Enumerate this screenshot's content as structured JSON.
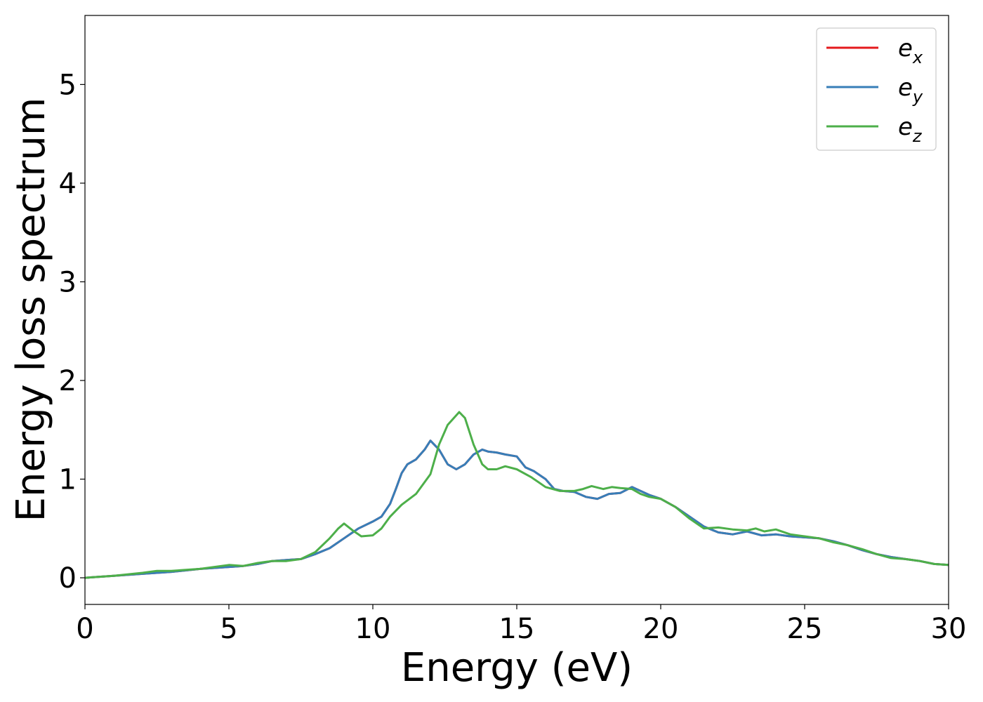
{
  "chart_data": {
    "type": "line",
    "xlabel": "Energy (eV)",
    "ylabel": "Energy loss spectrum",
    "xlim": [
      0,
      30
    ],
    "ylim": [
      -0.27,
      5.7
    ],
    "xticks": [
      "0",
      "5",
      "10",
      "15",
      "20",
      "25",
      "30"
    ],
    "yticks": [
      "0",
      "1",
      "2",
      "3",
      "4",
      "5"
    ],
    "grid": false,
    "legend_position": "top-right",
    "series": [
      {
        "name": "e",
        "subscript": "x",
        "color": "#e41a1c",
        "x": [
          0,
          1,
          2,
          3,
          4,
          4.5,
          5,
          5.5,
          6,
          6.5,
          7,
          7.5,
          8,
          8.5,
          9,
          9.5,
          10,
          10.3,
          10.6,
          10.8,
          11,
          11.2,
          11.5,
          11.8,
          12,
          12.3,
          12.6,
          12.9,
          13.2,
          13.5,
          13.8,
          14,
          14.3,
          14.6,
          15,
          15.3,
          15.6,
          16,
          16.3,
          16.6,
          17,
          17.4,
          17.8,
          18.2,
          18.6,
          19,
          19.3,
          19.6,
          20,
          20.5,
          21,
          21.5,
          22,
          22.5,
          23,
          23.5,
          24,
          24.5,
          25,
          25.5,
          26,
          26.5,
          27,
          27.5,
          28,
          28.5,
          29,
          29.5,
          30
        ],
        "values": [
          0,
          0.02,
          0.04,
          0.06,
          0.09,
          0.1,
          0.11,
          0.12,
          0.14,
          0.17,
          0.18,
          0.19,
          0.24,
          0.3,
          0.4,
          0.5,
          0.57,
          0.62,
          0.75,
          0.9,
          1.06,
          1.15,
          1.2,
          1.3,
          1.39,
          1.3,
          1.15,
          1.1,
          1.15,
          1.25,
          1.3,
          1.28,
          1.27,
          1.25,
          1.23,
          1.12,
          1.08,
          1,
          0.9,
          0.88,
          0.87,
          0.82,
          0.8,
          0.85,
          0.86,
          0.92,
          0.88,
          0.84,
          0.8,
          0.72,
          0.62,
          0.52,
          0.46,
          0.44,
          0.47,
          0.43,
          0.44,
          0.42,
          0.41,
          0.4,
          0.37,
          0.33,
          0.28,
          0.24,
          0.21,
          0.19,
          0.17,
          0.14,
          0.13
        ]
      },
      {
        "name": "e",
        "subscript": "y",
        "color": "#377eb8",
        "x": [
          0,
          1,
          2,
          3,
          4,
          4.5,
          5,
          5.5,
          6,
          6.5,
          7,
          7.5,
          8,
          8.5,
          9,
          9.5,
          10,
          10.3,
          10.6,
          10.8,
          11,
          11.2,
          11.5,
          11.8,
          12,
          12.3,
          12.6,
          12.9,
          13.2,
          13.5,
          13.8,
          14,
          14.3,
          14.6,
          15,
          15.3,
          15.6,
          16,
          16.3,
          16.6,
          17,
          17.4,
          17.8,
          18.2,
          18.6,
          19,
          19.3,
          19.6,
          20,
          20.5,
          21,
          21.5,
          22,
          22.5,
          23,
          23.5,
          24,
          24.5,
          25,
          25.5,
          26,
          26.5,
          27,
          27.5,
          28,
          28.5,
          29,
          29.5,
          30
        ],
        "values": [
          0,
          0.02,
          0.04,
          0.06,
          0.09,
          0.1,
          0.11,
          0.12,
          0.14,
          0.17,
          0.18,
          0.19,
          0.24,
          0.3,
          0.4,
          0.5,
          0.57,
          0.62,
          0.75,
          0.9,
          1.06,
          1.15,
          1.2,
          1.3,
          1.39,
          1.3,
          1.15,
          1.1,
          1.15,
          1.25,
          1.3,
          1.28,
          1.27,
          1.25,
          1.23,
          1.12,
          1.08,
          1,
          0.9,
          0.88,
          0.87,
          0.82,
          0.8,
          0.85,
          0.86,
          0.92,
          0.88,
          0.84,
          0.8,
          0.72,
          0.62,
          0.52,
          0.46,
          0.44,
          0.47,
          0.43,
          0.44,
          0.42,
          0.41,
          0.4,
          0.37,
          0.33,
          0.28,
          0.24,
          0.21,
          0.19,
          0.17,
          0.14,
          0.13
        ]
      },
      {
        "name": "e",
        "subscript": "z",
        "color": "#4daf4a",
        "x": [
          0,
          1,
          2,
          2.5,
          3,
          4,
          4.5,
          5,
          5.5,
          6,
          6.5,
          7,
          7.5,
          8,
          8.5,
          8.8,
          9,
          9.3,
          9.6,
          10,
          10.3,
          10.6,
          11,
          11.5,
          12,
          12.3,
          12.6,
          13,
          13.2,
          13.5,
          13.8,
          14,
          14.3,
          14.6,
          15,
          15.5,
          16,
          16.5,
          17,
          17.3,
          17.6,
          18,
          18.3,
          18.6,
          19,
          19.3,
          19.6,
          20,
          20.5,
          21,
          21.5,
          22,
          22.5,
          23,
          23.3,
          23.6,
          24,
          24.5,
          25,
          25.5,
          26,
          26.5,
          27,
          27.5,
          28,
          28.5,
          29,
          29.5,
          30
        ],
        "values": [
          0,
          0.02,
          0.05,
          0.07,
          0.07,
          0.09,
          0.11,
          0.13,
          0.12,
          0.15,
          0.17,
          0.17,
          0.19,
          0.26,
          0.4,
          0.5,
          0.55,
          0.48,
          0.42,
          0.43,
          0.5,
          0.62,
          0.74,
          0.85,
          1.05,
          1.35,
          1.55,
          1.68,
          1.62,
          1.35,
          1.15,
          1.1,
          1.1,
          1.13,
          1.1,
          1.02,
          0.92,
          0.88,
          0.88,
          0.9,
          0.93,
          0.9,
          0.92,
          0.91,
          0.9,
          0.85,
          0.82,
          0.8,
          0.72,
          0.6,
          0.5,
          0.51,
          0.49,
          0.48,
          0.5,
          0.47,
          0.49,
          0.44,
          0.42,
          0.4,
          0.36,
          0.33,
          0.29,
          0.24,
          0.2,
          0.19,
          0.17,
          0.14,
          0.13
        ]
      }
    ]
  }
}
